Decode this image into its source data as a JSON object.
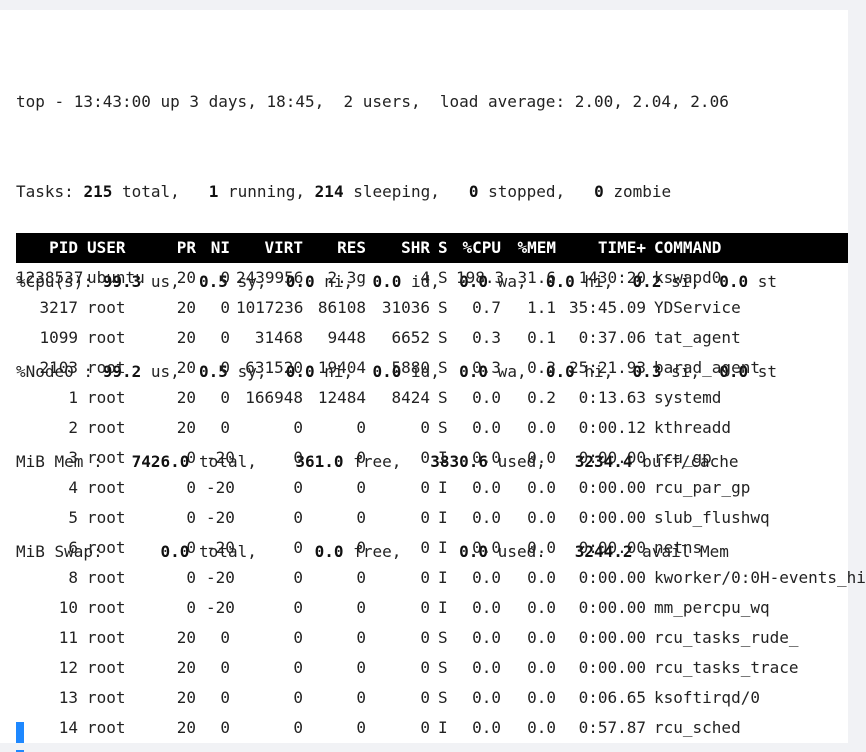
{
  "summary": {
    "uptime": "top - 13:43:00 up 3 days, 18:45,  2 users,  load average: 2.00, 2.04, 2.06",
    "tasks": {
      "label": "Tasks:",
      "total": "215",
      "total_label": "total,",
      "running": "1",
      "running_label": "running,",
      "sleeping": "214",
      "sleeping_label": "sleeping,",
      "stopped": "0",
      "stopped_label": "stopped,",
      "zombie": "0",
      "zombie_label": "zombie"
    },
    "cpu": {
      "label": "%Cpu(s):",
      "us": "99.3",
      "sy": "0.5",
      "ni": "0.0",
      "id": "0.0",
      "wa": "0.0",
      "hi": "0.0",
      "si": "0.2",
      "st": "0.0"
    },
    "node0": {
      "label": "%Node0 :",
      "us": "99.2",
      "sy": "0.5",
      "ni": "0.0",
      "id": "0.0",
      "wa": "0.0",
      "hi": "0.0",
      "si": "0.3",
      "st": "0.0"
    },
    "mem": {
      "label": "MiB Mem :",
      "total": "7426.0",
      "free": "361.0",
      "used": "3830.6",
      "buff": "3234.4"
    },
    "swap": {
      "label": "MiB Swap:",
      "total": "0.0",
      "free": "0.0",
      "used": "0.0",
      "avail": "3244.2"
    }
  },
  "columns": [
    "PID",
    "USER",
    "PR",
    "NI",
    "VIRT",
    "RES",
    "SHR",
    "S",
    "%CPU",
    "%MEM",
    "TIME+",
    "COMMAND"
  ],
  "processes": [
    {
      "pid": "1238537",
      "user": "ubuntu",
      "pr": "20",
      "ni": "0",
      "virt": "2439956",
      "res": "2.3g",
      "shr": "4",
      "s": "S",
      "cpu": "198.3",
      "mem": "31.6",
      "time": "1430:20",
      "cmd": "kswapd0"
    },
    {
      "pid": "3217",
      "user": "root",
      "pr": "20",
      "ni": "0",
      "virt": "1017236",
      "res": "86108",
      "shr": "31036",
      "s": "S",
      "cpu": "0.7",
      "mem": "1.1",
      "time": "35:45.09",
      "cmd": "YDService"
    },
    {
      "pid": "1099",
      "user": "root",
      "pr": "20",
      "ni": "0",
      "virt": "31468",
      "res": "9448",
      "shr": "6652",
      "s": "S",
      "cpu": "0.3",
      "mem": "0.1",
      "time": "0:37.06",
      "cmd": "tat_agent"
    },
    {
      "pid": "2103",
      "user": "root",
      "pr": "20",
      "ni": "0",
      "virt": "631520",
      "res": "19404",
      "shr": "5880",
      "s": "S",
      "cpu": "0.3",
      "mem": "0.3",
      "time": "25:21.93",
      "cmd": "barad_agent"
    },
    {
      "pid": "1",
      "user": "root",
      "pr": "20",
      "ni": "0",
      "virt": "166948",
      "res": "12484",
      "shr": "8424",
      "s": "S",
      "cpu": "0.0",
      "mem": "0.2",
      "time": "0:13.63",
      "cmd": "systemd"
    },
    {
      "pid": "2",
      "user": "root",
      "pr": "20",
      "ni": "0",
      "virt": "0",
      "res": "0",
      "shr": "0",
      "s": "S",
      "cpu": "0.0",
      "mem": "0.0",
      "time": "0:00.12",
      "cmd": "kthreadd"
    },
    {
      "pid": "3",
      "user": "root",
      "pr": "0",
      "ni": "-20",
      "virt": "0",
      "res": "0",
      "shr": "0",
      "s": "I",
      "cpu": "0.0",
      "mem": "0.0",
      "time": "0:00.00",
      "cmd": "rcu_gp"
    },
    {
      "pid": "4",
      "user": "root",
      "pr": "0",
      "ni": "-20",
      "virt": "0",
      "res": "0",
      "shr": "0",
      "s": "I",
      "cpu": "0.0",
      "mem": "0.0",
      "time": "0:00.00",
      "cmd": "rcu_par_gp"
    },
    {
      "pid": "5",
      "user": "root",
      "pr": "0",
      "ni": "-20",
      "virt": "0",
      "res": "0",
      "shr": "0",
      "s": "I",
      "cpu": "0.0",
      "mem": "0.0",
      "time": "0:00.00",
      "cmd": "slub_flushwq"
    },
    {
      "pid": "6",
      "user": "root",
      "pr": "0",
      "ni": "-20",
      "virt": "0",
      "res": "0",
      "shr": "0",
      "s": "I",
      "cpu": "0.0",
      "mem": "0.0",
      "time": "0:00.00",
      "cmd": "netns"
    },
    {
      "pid": "8",
      "user": "root",
      "pr": "0",
      "ni": "-20",
      "virt": "0",
      "res": "0",
      "shr": "0",
      "s": "I",
      "cpu": "0.0",
      "mem": "0.0",
      "time": "0:00.00",
      "cmd": "kworker/0:0H-events_hi"
    },
    {
      "pid": "10",
      "user": "root",
      "pr": "0",
      "ni": "-20",
      "virt": "0",
      "res": "0",
      "shr": "0",
      "s": "I",
      "cpu": "0.0",
      "mem": "0.0",
      "time": "0:00.00",
      "cmd": "mm_percpu_wq"
    },
    {
      "pid": "11",
      "user": "root",
      "pr": "20",
      "ni": "0",
      "virt": "0",
      "res": "0",
      "shr": "0",
      "s": "S",
      "cpu": "0.0",
      "mem": "0.0",
      "time": "0:00.00",
      "cmd": "rcu_tasks_rude_"
    },
    {
      "pid": "12",
      "user": "root",
      "pr": "20",
      "ni": "0",
      "virt": "0",
      "res": "0",
      "shr": "0",
      "s": "S",
      "cpu": "0.0",
      "mem": "0.0",
      "time": "0:00.00",
      "cmd": "rcu_tasks_trace"
    },
    {
      "pid": "13",
      "user": "root",
      "pr": "20",
      "ni": "0",
      "virt": "0",
      "res": "0",
      "shr": "0",
      "s": "S",
      "cpu": "0.0",
      "mem": "0.0",
      "time": "0:06.65",
      "cmd": "ksoftirqd/0"
    },
    {
      "pid": "14",
      "user": "root",
      "pr": "20",
      "ni": "0",
      "virt": "0",
      "res": "0",
      "shr": "0",
      "s": "I",
      "cpu": "0.0",
      "mem": "0.0",
      "time": "0:57.87",
      "cmd": "rcu_sched"
    }
  ],
  "colors": {
    "header_bg": "#000000",
    "cursor": "#1e88ff"
  }
}
